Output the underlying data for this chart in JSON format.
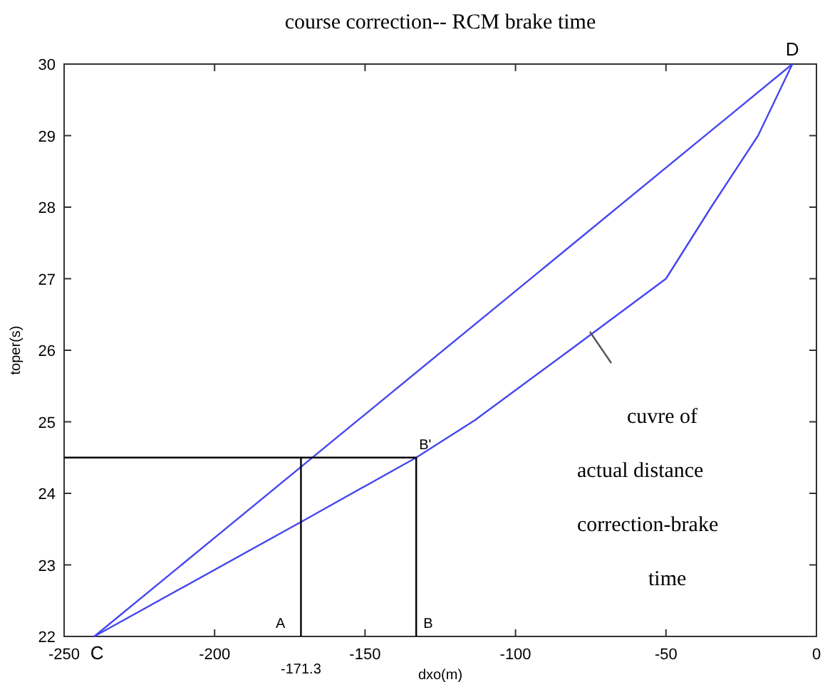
{
  "chart_data": {
    "type": "line",
    "title": "course correction-- RCM brake time",
    "xlabel": "dxo(m)",
    "ylabel": "toper(s)",
    "xlim": [
      -250,
      0
    ],
    "xticks": [
      -250,
      -200,
      -150,
      -100,
      -50,
      0
    ],
    "ylim": [
      22,
      30
    ],
    "yticks": [
      22,
      23,
      24,
      25,
      26,
      27,
      28,
      29,
      30
    ],
    "grid": false,
    "marker": "none",
    "line_style": "solid",
    "series": [
      {
        "color": "#4646f0",
        "x": [
          -240,
          -8
        ],
        "values": [
          22,
          30
        ]
      },
      {
        "color": "#4646f0",
        "x": [
          -240,
          -171.3,
          -133,
          -113.6,
          -82,
          -50,
          -35,
          -19.4,
          -8
        ],
        "values": [
          22,
          23.6,
          24.5,
          25.02,
          26,
          27,
          28,
          29,
          30
        ]
      },
      {
        "color": "#000000",
        "x": [
          -250,
          -133,
          -133
        ],
        "values": [
          24.5,
          24.5,
          22
        ]
      },
      {
        "color": "#000000",
        "x": [
          -171.3,
          -171.3
        ],
        "values": [
          22,
          24.5
        ]
      }
    ],
    "annotations": [
      {
        "text": "C",
        "x": -240,
        "y": 22
      },
      {
        "text": "A",
        "x": -171.3,
        "y": 22
      },
      {
        "text": "B",
        "x": -133,
        "y": 22
      },
      {
        "text": "B'",
        "x": -133,
        "y": 24.5
      },
      {
        "text": "D",
        "x": -8,
        "y": 30
      },
      {
        "text": "-171.3",
        "x": -171.3,
        "y": 22
      },
      "cuvre of",
      "actual distance",
      "correction-brake",
      "time"
    ]
  }
}
